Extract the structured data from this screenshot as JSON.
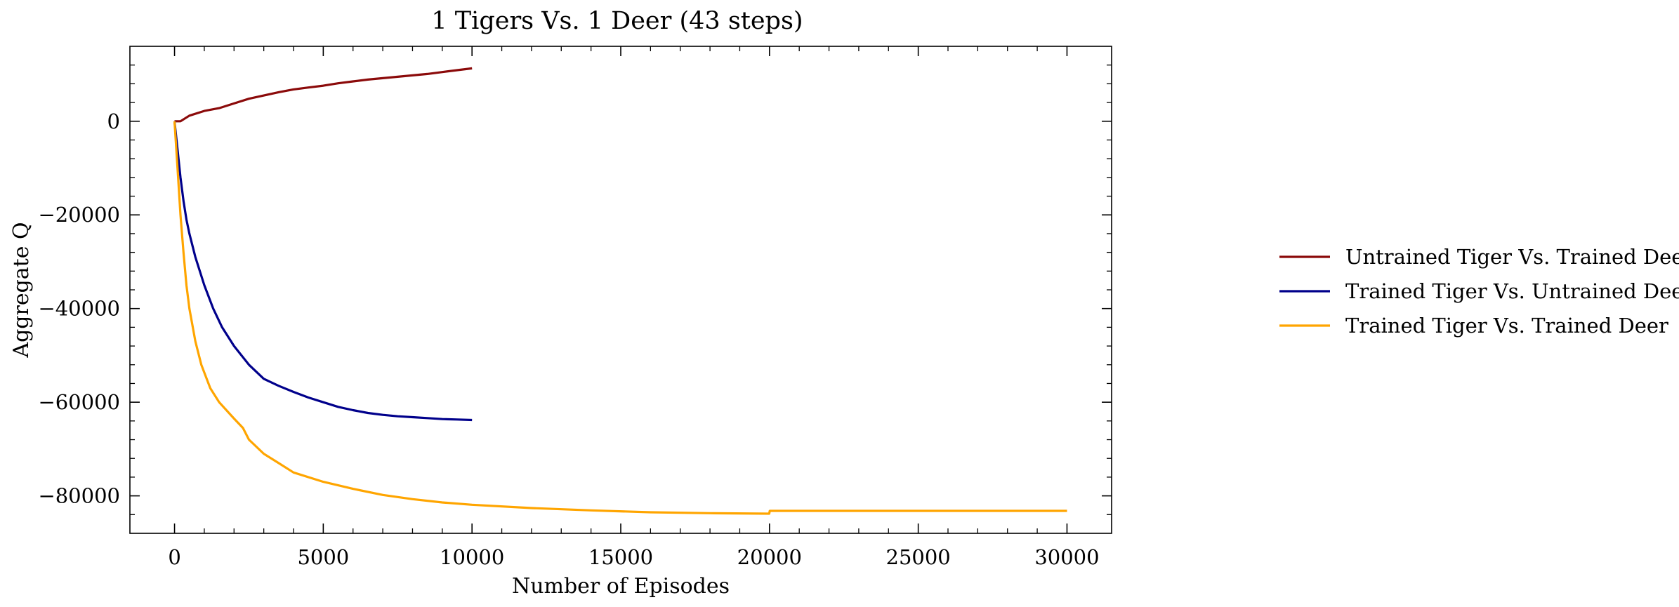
{
  "chart_data": {
    "type": "line",
    "title": "1 Tigers Vs. 1 Deer (43 steps)",
    "xlabel": "Number of Episodes",
    "ylabel": "Aggregate Q",
    "xlim": [
      -1500,
      31500
    ],
    "ylim": [
      -88000,
      16000
    ],
    "xticks": [
      0,
      5000,
      10000,
      15000,
      20000,
      25000,
      30000
    ],
    "yticks": [
      0,
      -20000,
      -40000,
      -60000,
      -80000
    ],
    "xticks_minor": [
      1000,
      2000,
      3000,
      4000,
      6000,
      7000,
      8000,
      9000,
      11000,
      12000,
      13000,
      14000,
      16000,
      17000,
      18000,
      19000,
      21000,
      22000,
      23000,
      24000,
      26000,
      27000,
      28000,
      29000
    ],
    "yticks_minor": [
      12000,
      8000,
      4000,
      -4000,
      -8000,
      -12000,
      -16000,
      -24000,
      -28000,
      -32000,
      -36000,
      -44000,
      -48000,
      -52000,
      -56000,
      -64000,
      -68000,
      -72000,
      -76000,
      -84000
    ],
    "xtick_labels": [
      "0",
      "5000",
      "10000",
      "15000",
      "20000",
      "25000",
      "30000"
    ],
    "ytick_labels": [
      "0",
      "−20000",
      "−40000",
      "−60000",
      "−80000"
    ],
    "grid": false,
    "legend_position": "outside-right",
    "series": [
      {
        "name": "Untrained Tiger Vs. Trained Deer",
        "color": "#8b0a0a",
        "x": [
          0,
          200,
          500,
          1000,
          1500,
          2000,
          2500,
          3000,
          3500,
          4000,
          4500,
          5000,
          5500,
          6000,
          6500,
          7000,
          7500,
          8000,
          8500,
          9000,
          9500,
          10000
        ],
        "y": [
          0,
          0,
          1200,
          2200,
          2800,
          3800,
          4800,
          5500,
          6200,
          6800,
          7200,
          7600,
          8100,
          8500,
          8900,
          9200,
          9500,
          9800,
          10100,
          10500,
          10900,
          11300
        ]
      },
      {
        "name": "Trained Tiger Vs. Untrained Deer",
        "color": "#00008b",
        "x": [
          0,
          100,
          200,
          300,
          400,
          500,
          700,
          1000,
          1300,
          1600,
          2000,
          2500,
          3000,
          3500,
          4000,
          4500,
          5000,
          5500,
          6000,
          6500,
          7000,
          7500,
          8000,
          8500,
          9000,
          9500,
          10000
        ],
        "y": [
          0,
          -6000,
          -12000,
          -17000,
          -21000,
          -24000,
          -29000,
          -35000,
          -40000,
          -44000,
          -48000,
          -52000,
          -55000,
          -56500,
          -57800,
          -59000,
          -60000,
          -61000,
          -61700,
          -62300,
          -62700,
          -63000,
          -63200,
          -63400,
          -63600,
          -63700,
          -63800
        ]
      },
      {
        "name": "Trained Tiger Vs. Trained Deer",
        "color": "#ffa500",
        "x": [
          0,
          100,
          200,
          300,
          400,
          500,
          700,
          900,
          1200,
          1500,
          2000,
          2300,
          2500,
          3000,
          3500,
          4000,
          5000,
          6000,
          7000,
          8000,
          9000,
          10000,
          12000,
          14000,
          16000,
          18000,
          19990,
          20010,
          22000,
          25000,
          28000,
          30000
        ],
        "y": [
          0,
          -10000,
          -20000,
          -28000,
          -35000,
          -40000,
          -47000,
          -52000,
          -57000,
          -60000,
          -63500,
          -65500,
          -68000,
          -71000,
          -73000,
          -75000,
          -77000,
          -78500,
          -79800,
          -80700,
          -81400,
          -81900,
          -82600,
          -83100,
          -83500,
          -83700,
          -83800,
          -83200,
          -83200,
          -83200,
          -83200,
          -83200
        ]
      }
    ]
  }
}
